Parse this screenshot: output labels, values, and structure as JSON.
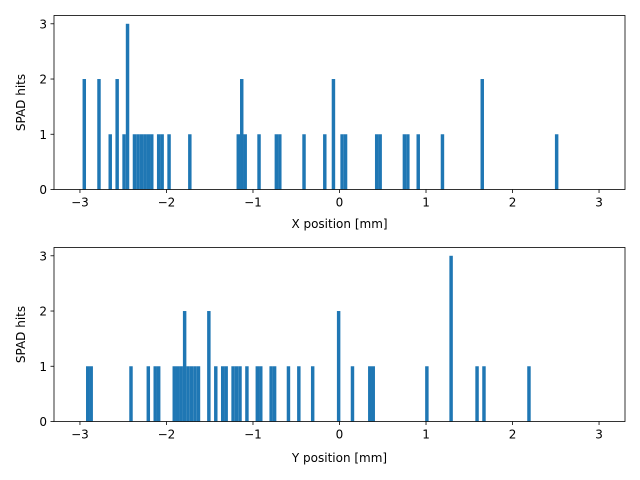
{
  "chart_data": [
    {
      "type": "bar",
      "title": "",
      "xlabel": "X position [mm]",
      "ylabel": "SPAD hits",
      "xlim": [
        -3.3,
        3.3
      ],
      "ylim": [
        0,
        3.15
      ],
      "xticks": [
        -3,
        -2,
        -1,
        0,
        1,
        2,
        3
      ],
      "xtick_labels": [
        "−3",
        "−2",
        "−1",
        "0",
        "1",
        "2",
        "3"
      ],
      "yticks": [
        0,
        1,
        2,
        3
      ],
      "ytick_labels": [
        "0",
        "1",
        "2",
        "3"
      ],
      "bin_width": 0.04,
      "color": "#1f77b4",
      "bars": [
        {
          "x": -2.95,
          "value": 2
        },
        {
          "x": -2.78,
          "value": 2
        },
        {
          "x": -2.65,
          "value": 1
        },
        {
          "x": -2.57,
          "value": 2
        },
        {
          "x": -2.49,
          "value": 1
        },
        {
          "x": -2.45,
          "value": 3
        },
        {
          "x": -2.37,
          "value": 1
        },
        {
          "x": -2.33,
          "value": 1
        },
        {
          "x": -2.29,
          "value": 1
        },
        {
          "x": -2.25,
          "value": 1
        },
        {
          "x": -2.21,
          "value": 1
        },
        {
          "x": -2.17,
          "value": 1
        },
        {
          "x": -2.09,
          "value": 1
        },
        {
          "x": -2.05,
          "value": 1
        },
        {
          "x": -1.97,
          "value": 1
        },
        {
          "x": -1.73,
          "value": 1
        },
        {
          "x": -1.17,
          "value": 1
        },
        {
          "x": -1.13,
          "value": 2
        },
        {
          "x": -1.09,
          "value": 1
        },
        {
          "x": -0.93,
          "value": 1
        },
        {
          "x": -0.73,
          "value": 1
        },
        {
          "x": -0.69,
          "value": 1
        },
        {
          "x": -0.41,
          "value": 1
        },
        {
          "x": -0.17,
          "value": 1
        },
        {
          "x": -0.07,
          "value": 2
        },
        {
          "x": 0.03,
          "value": 1
        },
        {
          "x": 0.07,
          "value": 1
        },
        {
          "x": 0.43,
          "value": 1
        },
        {
          "x": 0.47,
          "value": 1
        },
        {
          "x": 0.75,
          "value": 1
        },
        {
          "x": 0.79,
          "value": 1
        },
        {
          "x": 0.91,
          "value": 1
        },
        {
          "x": 1.19,
          "value": 1
        },
        {
          "x": 1.65,
          "value": 2
        },
        {
          "x": 2.51,
          "value": 1
        }
      ]
    },
    {
      "type": "bar",
      "title": "",
      "xlabel": "Y position [mm]",
      "ylabel": "SPAD hits",
      "xlim": [
        -3.3,
        3.3
      ],
      "ylim": [
        0,
        3.15
      ],
      "xticks": [
        -3,
        -2,
        -1,
        0,
        1,
        2,
        3
      ],
      "xtick_labels": [
        "−3",
        "−2",
        "−1",
        "0",
        "1",
        "2",
        "3"
      ],
      "yticks": [
        0,
        1,
        2,
        3
      ],
      "ytick_labels": [
        "0",
        "1",
        "2",
        "3"
      ],
      "bin_width": 0.04,
      "color": "#1f77b4",
      "bars": [
        {
          "x": -2.91,
          "value": 1
        },
        {
          "x": -2.87,
          "value": 1
        },
        {
          "x": -2.41,
          "value": 1
        },
        {
          "x": -2.21,
          "value": 1
        },
        {
          "x": -2.13,
          "value": 1
        },
        {
          "x": -2.09,
          "value": 1
        },
        {
          "x": -1.91,
          "value": 1
        },
        {
          "x": -1.87,
          "value": 1
        },
        {
          "x": -1.83,
          "value": 1
        },
        {
          "x": -1.79,
          "value": 2
        },
        {
          "x": -1.75,
          "value": 1
        },
        {
          "x": -1.71,
          "value": 1
        },
        {
          "x": -1.67,
          "value": 1
        },
        {
          "x": -1.63,
          "value": 1
        },
        {
          "x": -1.51,
          "value": 2
        },
        {
          "x": -1.43,
          "value": 1
        },
        {
          "x": -1.35,
          "value": 1
        },
        {
          "x": -1.31,
          "value": 1
        },
        {
          "x": -1.23,
          "value": 1
        },
        {
          "x": -1.19,
          "value": 1
        },
        {
          "x": -1.15,
          "value": 1
        },
        {
          "x": -1.07,
          "value": 1
        },
        {
          "x": -0.95,
          "value": 1
        },
        {
          "x": -0.91,
          "value": 1
        },
        {
          "x": -0.79,
          "value": 1
        },
        {
          "x": -0.75,
          "value": 1
        },
        {
          "x": -0.59,
          "value": 1
        },
        {
          "x": -0.47,
          "value": 1
        },
        {
          "x": -0.31,
          "value": 1
        },
        {
          "x": -0.01,
          "value": 2
        },
        {
          "x": 0.15,
          "value": 1
        },
        {
          "x": 0.35,
          "value": 1
        },
        {
          "x": 0.39,
          "value": 1
        },
        {
          "x": 1.01,
          "value": 1
        },
        {
          "x": 1.29,
          "value": 3
        },
        {
          "x": 1.59,
          "value": 1
        },
        {
          "x": 1.67,
          "value": 1
        },
        {
          "x": 2.19,
          "value": 1
        }
      ]
    }
  ]
}
